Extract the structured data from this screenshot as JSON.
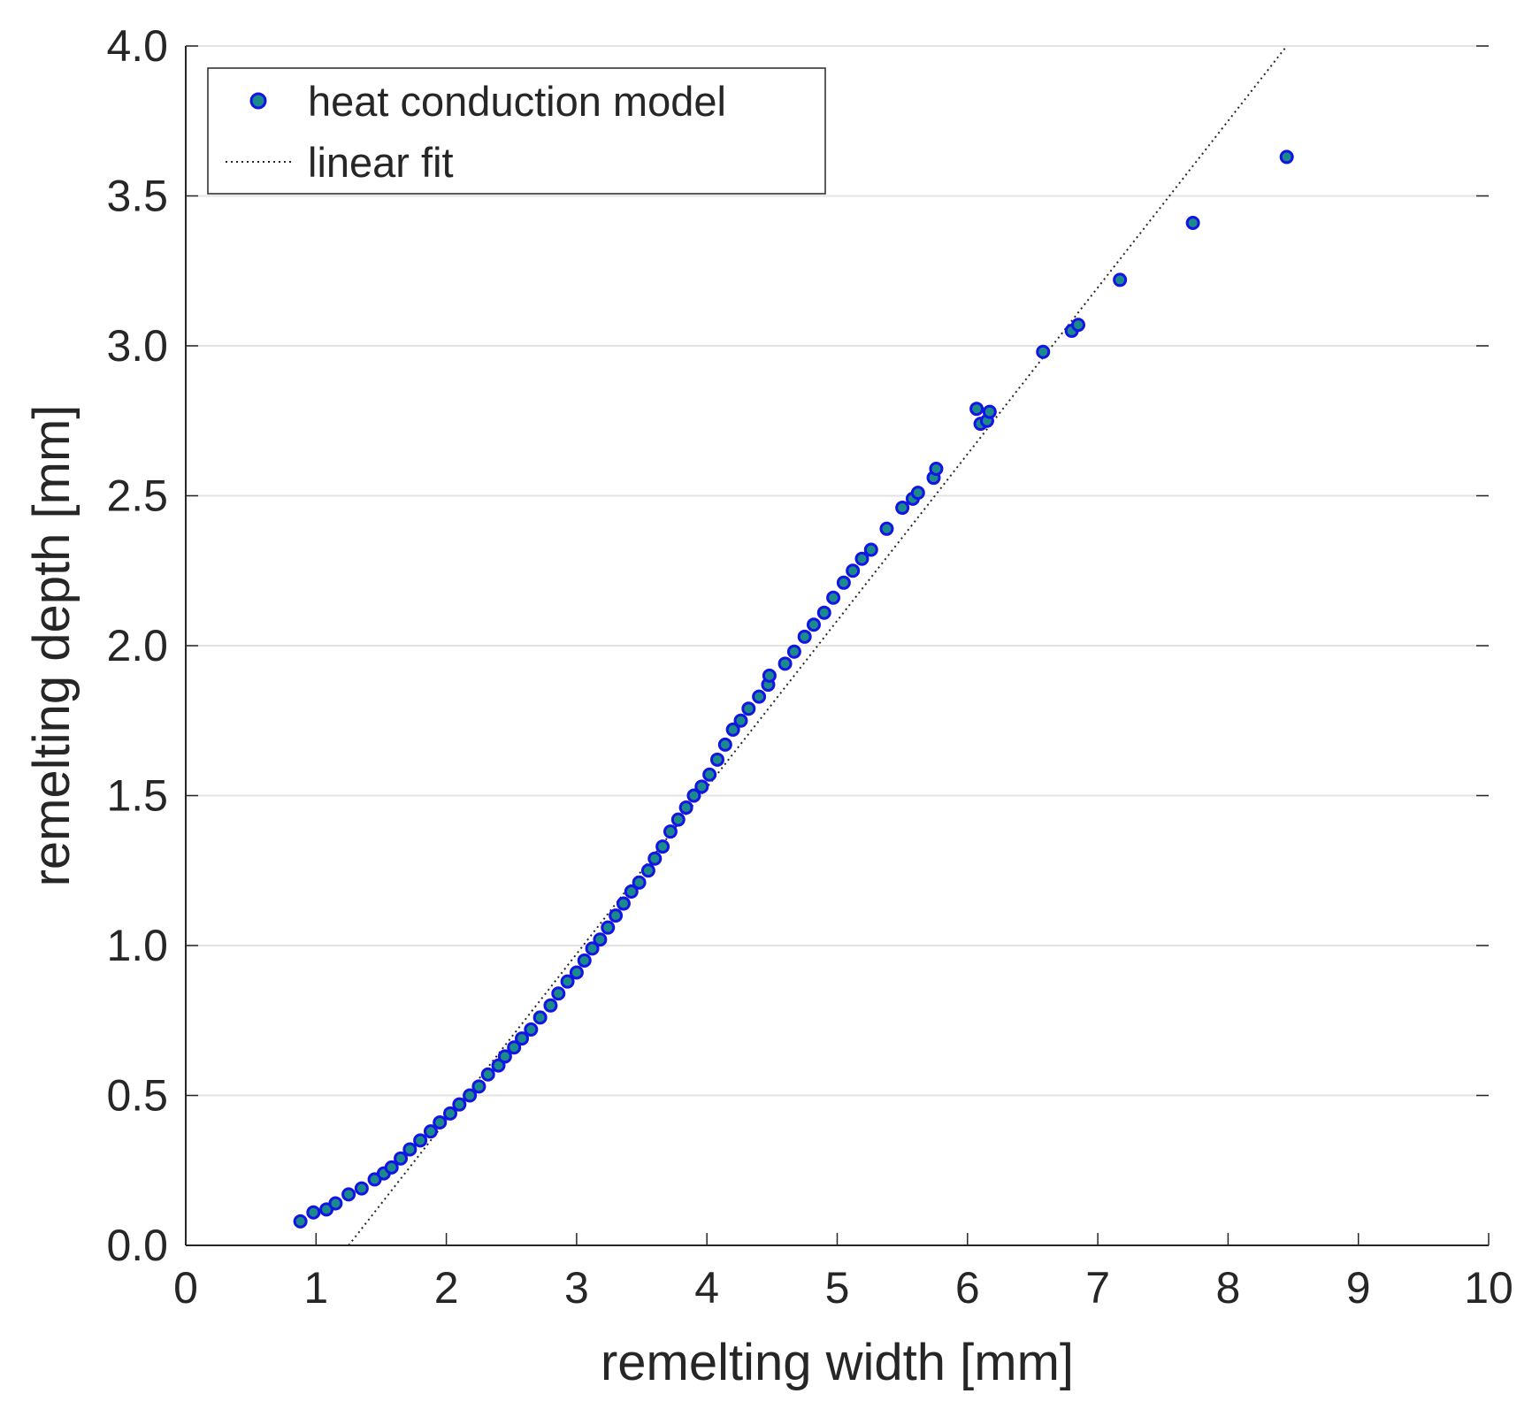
{
  "chart_data": {
    "type": "scatter",
    "xlabel": "remelting width [mm]",
    "ylabel": "remelting depth [mm]",
    "xlim": [
      0,
      10
    ],
    "ylim": [
      0,
      4
    ],
    "x_ticks": [
      "0",
      "1",
      "2",
      "3",
      "4",
      "5",
      "6",
      "7",
      "8",
      "9",
      "10"
    ],
    "y_ticks": [
      "0.0",
      "0.5",
      "1.0",
      "1.5",
      "2.0",
      "2.5",
      "3.0",
      "3.5",
      "4.0"
    ],
    "grid": "horizontal",
    "legend_position": "top-left",
    "series": [
      {
        "name": "heat conduction model",
        "style": "markers",
        "marker_fill": "#1a8a8a",
        "marker_edge": "#1414e6",
        "points": [
          [
            0.88,
            0.08
          ],
          [
            0.98,
            0.11
          ],
          [
            1.08,
            0.12
          ],
          [
            1.15,
            0.14
          ],
          [
            1.25,
            0.17
          ],
          [
            1.35,
            0.19
          ],
          [
            1.45,
            0.22
          ],
          [
            1.52,
            0.24
          ],
          [
            1.58,
            0.26
          ],
          [
            1.65,
            0.29
          ],
          [
            1.72,
            0.32
          ],
          [
            1.8,
            0.35
          ],
          [
            1.88,
            0.38
          ],
          [
            1.95,
            0.41
          ],
          [
            2.03,
            0.44
          ],
          [
            2.1,
            0.47
          ],
          [
            2.18,
            0.5
          ],
          [
            2.25,
            0.53
          ],
          [
            2.32,
            0.57
          ],
          [
            2.4,
            0.6
          ],
          [
            2.45,
            0.63
          ],
          [
            2.52,
            0.66
          ],
          [
            2.58,
            0.69
          ],
          [
            2.65,
            0.72
          ],
          [
            2.72,
            0.76
          ],
          [
            2.8,
            0.8
          ],
          [
            2.86,
            0.84
          ],
          [
            2.93,
            0.88
          ],
          [
            3.0,
            0.91
          ],
          [
            3.06,
            0.95
          ],
          [
            3.12,
            0.99
          ],
          [
            3.18,
            1.02
          ],
          [
            3.24,
            1.06
          ],
          [
            3.3,
            1.1
          ],
          [
            3.36,
            1.14
          ],
          [
            3.42,
            1.18
          ],
          [
            3.48,
            1.21
          ],
          [
            3.55,
            1.25
          ],
          [
            3.6,
            1.29
          ],
          [
            3.66,
            1.33
          ],
          [
            3.72,
            1.38
          ],
          [
            3.78,
            1.42
          ],
          [
            3.84,
            1.46
          ],
          [
            3.9,
            1.5
          ],
          [
            3.96,
            1.53
          ],
          [
            4.02,
            1.57
          ],
          [
            4.08,
            1.62
          ],
          [
            4.14,
            1.67
          ],
          [
            4.2,
            1.72
          ],
          [
            4.26,
            1.75
          ],
          [
            4.32,
            1.79
          ],
          [
            4.4,
            1.83
          ],
          [
            4.47,
            1.87
          ],
          [
            4.48,
            1.9
          ],
          [
            4.6,
            1.94
          ],
          [
            4.67,
            1.98
          ],
          [
            4.75,
            2.03
          ],
          [
            4.82,
            2.07
          ],
          [
            4.9,
            2.11
          ],
          [
            4.97,
            2.16
          ],
          [
            5.05,
            2.21
          ],
          [
            5.12,
            2.25
          ],
          [
            5.19,
            2.29
          ],
          [
            5.26,
            2.32
          ],
          [
            5.38,
            2.39
          ],
          [
            5.5,
            2.46
          ],
          [
            5.58,
            2.49
          ],
          [
            5.62,
            2.51
          ],
          [
            5.74,
            2.56
          ],
          [
            5.76,
            2.59
          ],
          [
            6.07,
            2.79
          ],
          [
            6.1,
            2.74
          ],
          [
            6.15,
            2.75
          ],
          [
            6.17,
            2.78
          ],
          [
            6.58,
            2.98
          ],
          [
            6.8,
            3.05
          ],
          [
            6.85,
            3.07
          ],
          [
            7.17,
            3.22
          ],
          [
            7.73,
            3.41
          ],
          [
            8.45,
            3.63
          ]
        ]
      },
      {
        "name": "linear fit",
        "style": "dotted-line",
        "color": "#262626",
        "x": [
          1.25,
          8.45
        ],
        "y": [
          0.0,
          4.0
        ]
      }
    ]
  }
}
